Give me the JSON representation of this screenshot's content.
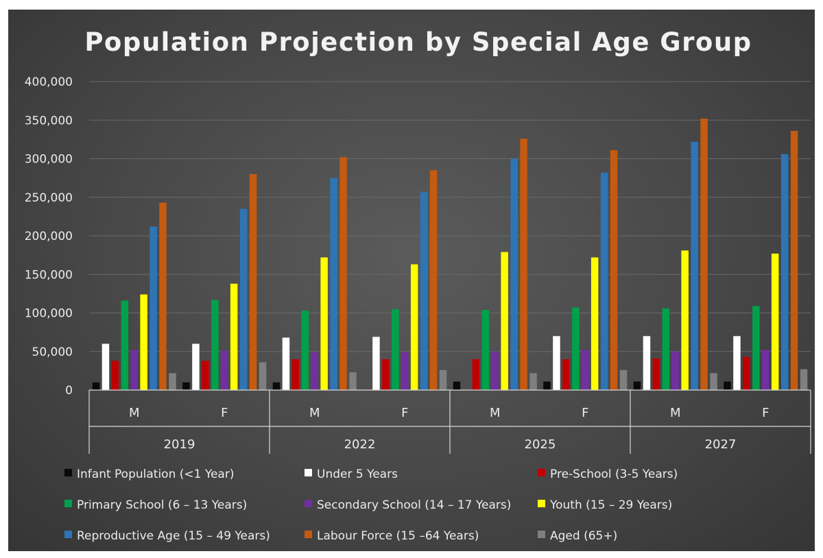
{
  "chart_data": {
    "type": "bar",
    "title": "Population Projection by Special Age Group",
    "xlabel": "",
    "ylabel": "",
    "ylim": [
      0,
      400000
    ],
    "y_ticks": [
      "0",
      "50,000",
      "100,000",
      "150,000",
      "200,000",
      "250,000",
      "300,000",
      "350,000",
      "400,000"
    ],
    "groups": [
      {
        "label": "2019",
        "categories": [
          "M",
          "F"
        ]
      },
      {
        "label": "2022",
        "categories": [
          "M",
          "F"
        ]
      },
      {
        "label": "2025",
        "categories": [
          "M",
          "F"
        ]
      },
      {
        "label": "2027",
        "categories": [
          "M",
          "F"
        ]
      }
    ],
    "categories": [
      "2019 M",
      "2019 F",
      "2022 M",
      "2022 F",
      "2025 M",
      "2025 F",
      "2027 M",
      "2027 F"
    ],
    "series": [
      {
        "name": "Infant Population (<1 Year)",
        "color": "#0a0a0a",
        "values": [
          10000,
          10000,
          10000,
          0,
          11000,
          11000,
          11000,
          11000
        ]
      },
      {
        "name": "Under 5 Years",
        "color": "#ffffff",
        "values": [
          60000,
          60000,
          68000,
          69000,
          0,
          70000,
          70000,
          70000
        ]
      },
      {
        "name": "Pre-School (3-5 Years)",
        "color": "#c00000",
        "values": [
          38000,
          38000,
          40000,
          40000,
          40000,
          40000,
          41000,
          43000
        ]
      },
      {
        "name": "Primary School (6 – 13 Years)",
        "color": "#00a14b",
        "values": [
          116000,
          117000,
          103000,
          105000,
          104000,
          107000,
          106000,
          109000
        ]
      },
      {
        "name": "Secondary School (14 – 17 Years)",
        "color": "#7030a0",
        "values": [
          52000,
          51000,
          49000,
          49000,
          50000,
          52000,
          50000,
          52000
        ]
      },
      {
        "name": "Youth (15 – 29 Years)",
        "color": "#ffff00",
        "values": [
          124000,
          138000,
          172000,
          163000,
          179000,
          172000,
          181000,
          177000
        ]
      },
      {
        "name": "Reproductive Age (15 – 49 Years)",
        "color": "#2e75b6",
        "values": [
          212000,
          235000,
          275000,
          257000,
          300000,
          282000,
          322000,
          306000
        ]
      },
      {
        "name": "Labour Force (15 –64 Years)",
        "color": "#c55a11",
        "values": [
          243000,
          280000,
          302000,
          285000,
          326000,
          311000,
          352000,
          336000
        ]
      },
      {
        "name": "Aged (65+)",
        "color": "#7f7f7f",
        "values": [
          22000,
          36000,
          23000,
          26000,
          22000,
          26000,
          22000,
          27000
        ]
      }
    ],
    "grid": true,
    "legend": "bottom"
  }
}
